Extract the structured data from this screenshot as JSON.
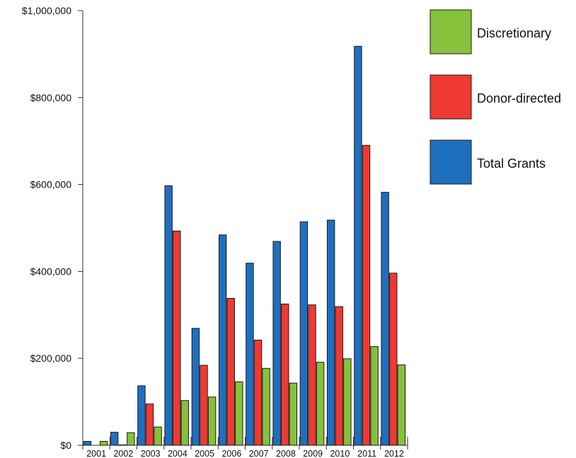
{
  "chart_data": {
    "type": "bar",
    "title": "",
    "xlabel": "",
    "ylabel": "",
    "ylim": [
      0,
      1000000
    ],
    "y_ticks": [
      "$0",
      "$200,000",
      "$400,000",
      "$600,000",
      "$800,000",
      "$1,000,000"
    ],
    "y_tick_values": [
      0,
      200000,
      400000,
      600000,
      800000,
      1000000
    ],
    "grid": false,
    "legend_position": "top-right",
    "categories": [
      "2001",
      "2002",
      "2003",
      "2004",
      "2005",
      "2006",
      "2007",
      "2008",
      "2009",
      "2010",
      "2011",
      "2012"
    ],
    "series": [
      {
        "name": "Total Grants",
        "color": "#1f6fbf",
        "values": [
          9000,
          30000,
          137000,
          597000,
          269000,
          484000,
          419000,
          469000,
          514000,
          518000,
          918000,
          582000
        ]
      },
      {
        "name": "Donor-directed",
        "color": "#ee3a33",
        "values": [
          0,
          1000,
          95000,
          493000,
          184000,
          338000,
          242000,
          325000,
          323000,
          319000,
          690000,
          396000
        ]
      },
      {
        "name": "Discretionary",
        "color": "#86c13b",
        "values": [
          9000,
          29000,
          42000,
          103000,
          111000,
          146000,
          177000,
          143000,
          191000,
          199000,
          227000,
          185000
        ]
      }
    ],
    "legend": [
      {
        "label": "Discretionary",
        "color": "#86c13b"
      },
      {
        "label": "Donor-directed",
        "color": "#ee3a33"
      },
      {
        "label": "Total Grants",
        "color": "#1f6fbf"
      }
    ]
  }
}
